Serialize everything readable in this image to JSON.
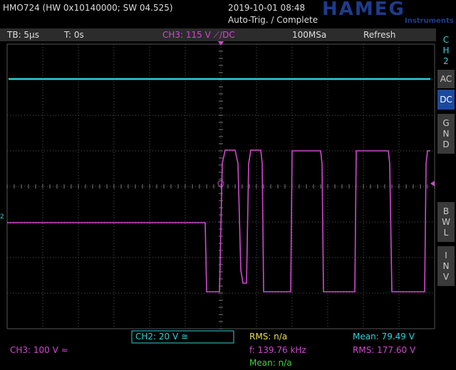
{
  "header": {
    "model": "HMO724 (HW 0x10140000; SW 04.525)",
    "datetime": "2019-10-01 08:48",
    "trigger_status": "Auto-Trig. / Complete",
    "logo": "HAMEG",
    "logo_sub": "Instruments"
  },
  "status_bar": {
    "timebase": "TB: 5µs",
    "trigger_time": "T: 0s",
    "trigger": "CH3: 115 V ⟋/DC",
    "sample_rate": "100MSa",
    "mode": "Refresh"
  },
  "side_menu": {
    "channel": "CH2",
    "buttons": [
      "AC",
      "DC",
      "GND",
      "BWL",
      "INV"
    ]
  },
  "footer": {
    "ch2_scale": "CH2: 20 V ≅",
    "ch3_scale": "CH3: 100 V ≈",
    "measurements": [
      {
        "text": "RMS: n/a",
        "color": "#e8e040"
      },
      {
        "text": "f: 139.76 kHz",
        "color": "#d048d0"
      },
      {
        "text": "Mean: n/a",
        "color": "#40d040"
      },
      {
        "text": "Mean: 79.49 V",
        "color": "#30d0d8"
      },
      {
        "text": "RMS: 177.60 V",
        "color": "#d048d0"
      }
    ]
  }
}
